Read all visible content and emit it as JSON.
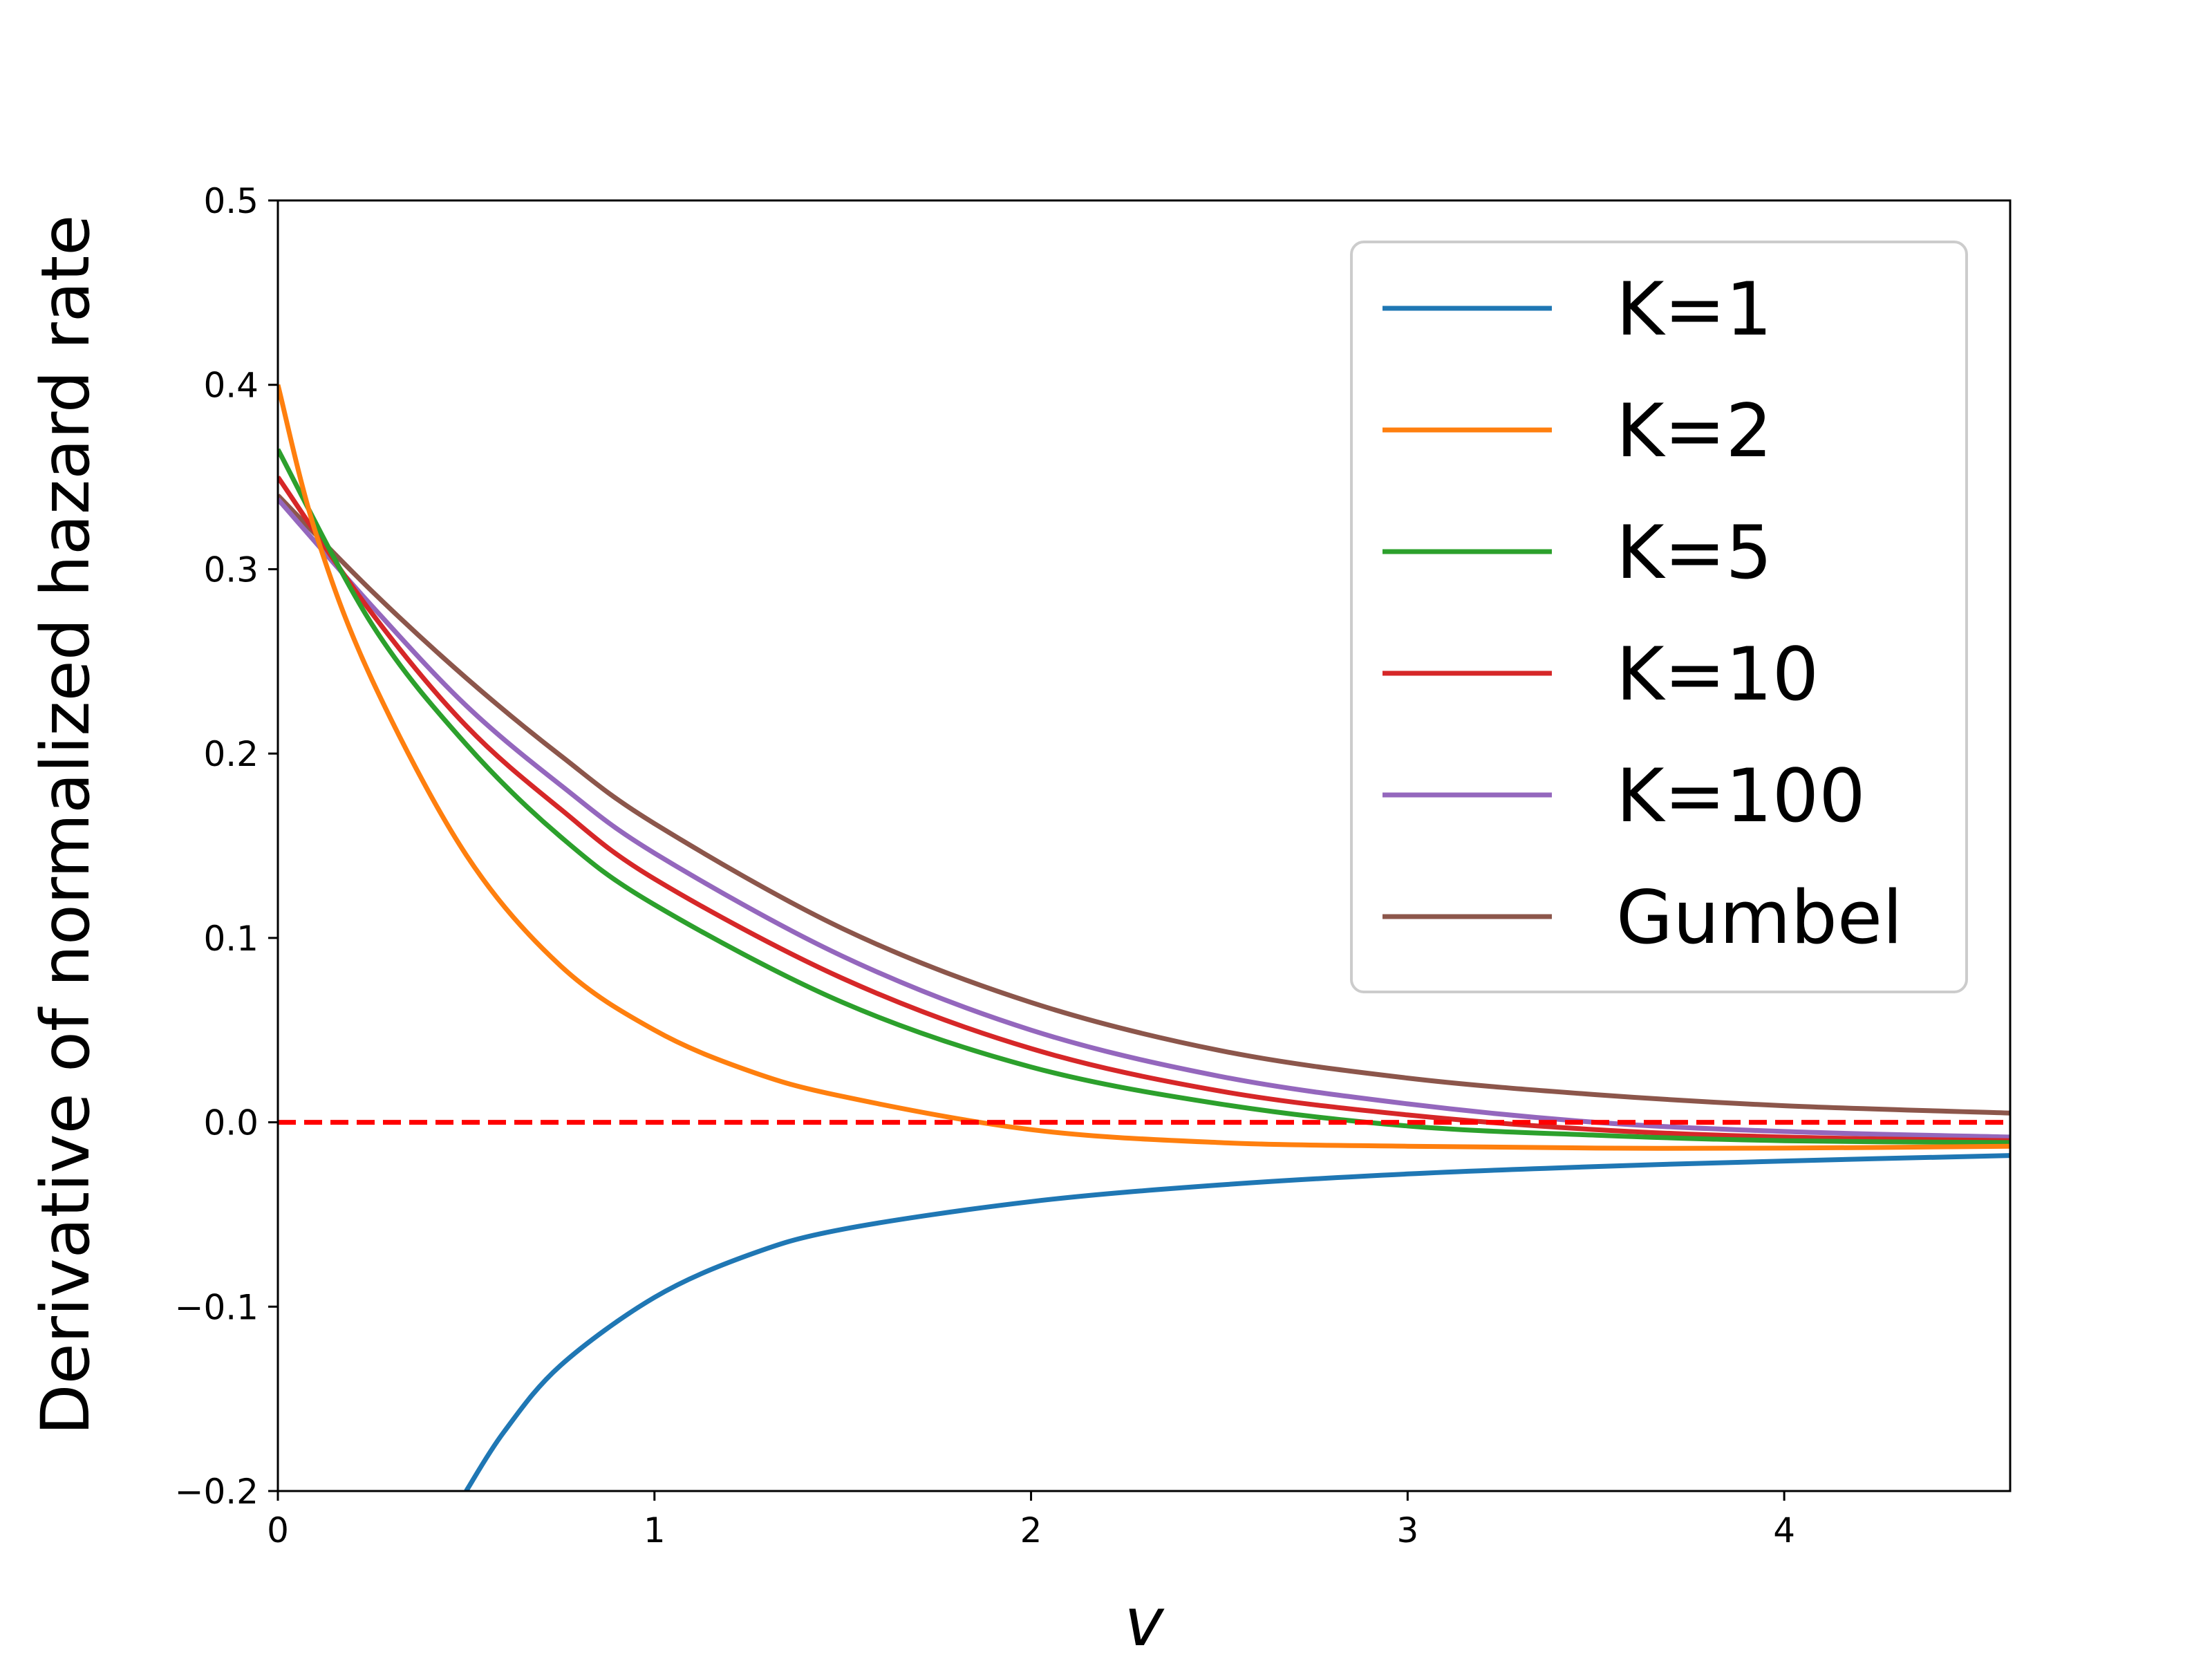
{
  "chart_data": {
    "type": "line",
    "title": "",
    "xlabel": "v",
    "ylabel": "Derivative of normalized hazard rate",
    "xlim": [
      0,
      4.6
    ],
    "ylim": [
      -0.2,
      0.5
    ],
    "xticks": [
      0,
      1,
      2,
      3,
      4
    ],
    "xtick_labels": [
      "0",
      "1",
      "2",
      "3",
      "4"
    ],
    "yticks": [
      -0.2,
      -0.1,
      0.0,
      0.1,
      0.2,
      0.3,
      0.4,
      0.5
    ],
    "ytick_labels": [
      "−0.2",
      "−0.1",
      "0.0",
      "0.1",
      "0.2",
      "0.3",
      "0.4",
      "0.5"
    ],
    "grid": false,
    "legend_position": "top-right",
    "reference_line": {
      "y": 0.0,
      "style": "dashed",
      "color": "#ff0000"
    },
    "series": [
      {
        "name": "Gumbel",
        "color": "#8c564b",
        "x": [
          0,
          0.25,
          0.5,
          0.75,
          1.0,
          1.5,
          2.0,
          2.5,
          3.0,
          3.5,
          4.0,
          4.6
        ],
        "y": [
          0.34,
          0.288,
          0.241,
          0.199,
          0.162,
          0.105,
          0.065,
          0.039,
          0.024,
          0.015,
          0.009,
          0.005
        ]
      },
      {
        "name": "K=100",
        "color": "#9467bd",
        "x": [
          0,
          0.25,
          0.5,
          0.75,
          1.0,
          1.5,
          2.0,
          2.5,
          3.0,
          3.5,
          4.0,
          4.6
        ],
        "y": [
          0.338,
          0.28,
          0.226,
          0.183,
          0.146,
          0.09,
          0.05,
          0.025,
          0.01,
          0.0,
          -0.005,
          -0.008
        ]
      },
      {
        "name": "K=10",
        "color": "#d62728",
        "x": [
          0,
          0.25,
          0.5,
          0.75,
          1.0,
          1.5,
          2.0,
          2.5,
          3.0,
          3.5,
          4.0,
          4.6
        ],
        "y": [
          0.35,
          0.276,
          0.215,
          0.17,
          0.132,
          0.078,
          0.04,
          0.017,
          0.004,
          -0.004,
          -0.008,
          -0.01
        ]
      },
      {
        "name": "K=5",
        "color": "#2ca02c",
        "x": [
          0,
          0.25,
          0.5,
          0.75,
          1.0,
          1.5,
          2.0,
          2.5,
          3.0,
          3.5,
          4.0,
          4.6
        ],
        "y": [
          0.365,
          0.27,
          0.205,
          0.155,
          0.118,
          0.065,
          0.03,
          0.01,
          -0.002,
          -0.007,
          -0.01,
          -0.011
        ]
      },
      {
        "name": "K=2",
        "color": "#ff7f0e",
        "x": [
          0,
          0.1,
          0.25,
          0.5,
          0.75,
          1.0,
          1.25,
          1.5,
          2.0,
          2.5,
          3.0,
          3.5,
          4.0,
          4.6
        ],
        "y": [
          0.4,
          0.32,
          0.24,
          0.145,
          0.085,
          0.05,
          0.028,
          0.014,
          -0.004,
          -0.011,
          -0.013,
          -0.014,
          -0.014,
          -0.013
        ]
      },
      {
        "name": "K=1",
        "color": "#1f77b4",
        "x": [
          0.5,
          0.6,
          0.75,
          1.0,
          1.25,
          1.5,
          2.0,
          2.5,
          3.0,
          3.5,
          4.0,
          4.6
        ],
        "y": [
          -0.2,
          -0.168,
          -0.132,
          -0.095,
          -0.072,
          -0.058,
          -0.043,
          -0.034,
          -0.028,
          -0.024,
          -0.021,
          -0.018
        ]
      }
    ]
  }
}
